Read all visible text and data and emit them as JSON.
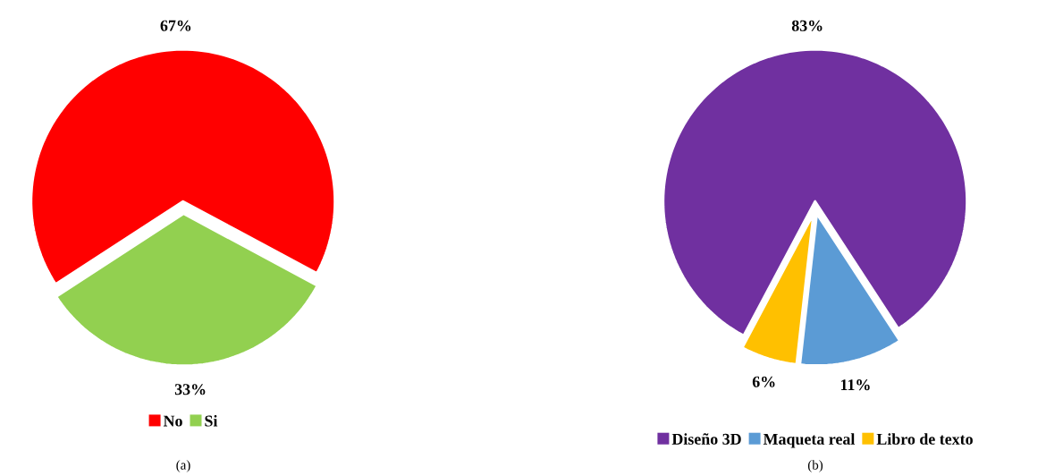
{
  "chart_data": [
    {
      "type": "pie",
      "categories": [
        "No",
        "Si"
      ],
      "values": [
        67,
        33
      ],
      "colors": [
        "#ff0000",
        "#92d050"
      ],
      "value_labels": [
        "67%",
        "33%"
      ],
      "legend": "bottom",
      "annotations": [
        "(a)"
      ]
    },
    {
      "type": "pie",
      "categories": [
        "Diseño 3D",
        "Maqueta real",
        "Libro de texto"
      ],
      "values": [
        83,
        11,
        6
      ],
      "colors": [
        "#7030a0",
        "#5b9bd5",
        "#ffc000"
      ],
      "value_labels": [
        "83%",
        "11%",
        "6%"
      ],
      "legend": "bottom",
      "annotations": [
        "(b)"
      ]
    }
  ]
}
